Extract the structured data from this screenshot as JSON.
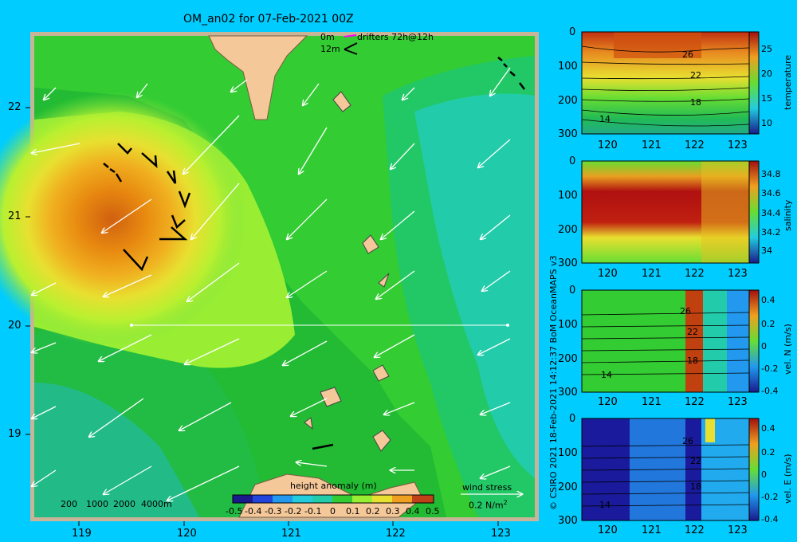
{
  "title": "OM_an02 for 07-Feb-2021 00Z",
  "legend_top": {
    "depth_0": "0m",
    "depth_12": "12m",
    "drifters": "drifters 72h@12h"
  },
  "map": {
    "x_ticks": [
      "119",
      "120",
      "121",
      "122",
      "123"
    ],
    "y_ticks": [
      "22",
      "21",
      "20",
      "19"
    ],
    "colorbar": {
      "label": "height anomaly (m)",
      "ticks": [
        "-0.5",
        "-0.4",
        "-0.3",
        "-0.2",
        "-0.1",
        "0",
        "0.1",
        "0.2",
        "0.3",
        "0.4",
        "0.5"
      ]
    },
    "bathy_legend": [
      "200",
      "1000",
      "2000",
      "4000m"
    ],
    "wind_label": "wind stress",
    "wind_scale": "0.2 N/m",
    "wind_scale_exp": "2"
  },
  "side_vertical_text": "© CSIRO 2021  18-Feb-2021 14:12:37 BoM OceanMAPS v3",
  "panels": [
    {
      "id": "temperature",
      "label": "temperature",
      "cbar_ticks": [
        "25",
        "20",
        "15",
        "10"
      ],
      "contour_labels": [
        "26",
        "22",
        "18",
        "14"
      ]
    },
    {
      "id": "salinity",
      "label": "salinity",
      "cbar_ticks": [
        "34.8",
        "34.6",
        "34.4",
        "34.2",
        "34"
      ],
      "contour_labels": []
    },
    {
      "id": "vel-n",
      "label": "vel. N (m/s)",
      "cbar_ticks": [
        "0.4",
        "0.2",
        "0",
        "-0.2",
        "-0.4"
      ],
      "contour_labels": [
        "26",
        "22",
        "18",
        "14"
      ]
    },
    {
      "id": "vel-e",
      "label": "vel. E (m/s)",
      "cbar_ticks": [
        "0.4",
        "0.2",
        "0",
        "-0.2",
        "-0.4"
      ],
      "contour_labels": [
        "26",
        "22",
        "18",
        "14"
      ]
    }
  ],
  "panel_axes": {
    "x_ticks": [
      "120",
      "121",
      "122",
      "123"
    ],
    "y_ticks": [
      "0",
      "100",
      "200",
      "300"
    ]
  },
  "colors": {
    "background": "#00ccff",
    "land": "#f5c89a",
    "frame": "#c8b496"
  }
}
